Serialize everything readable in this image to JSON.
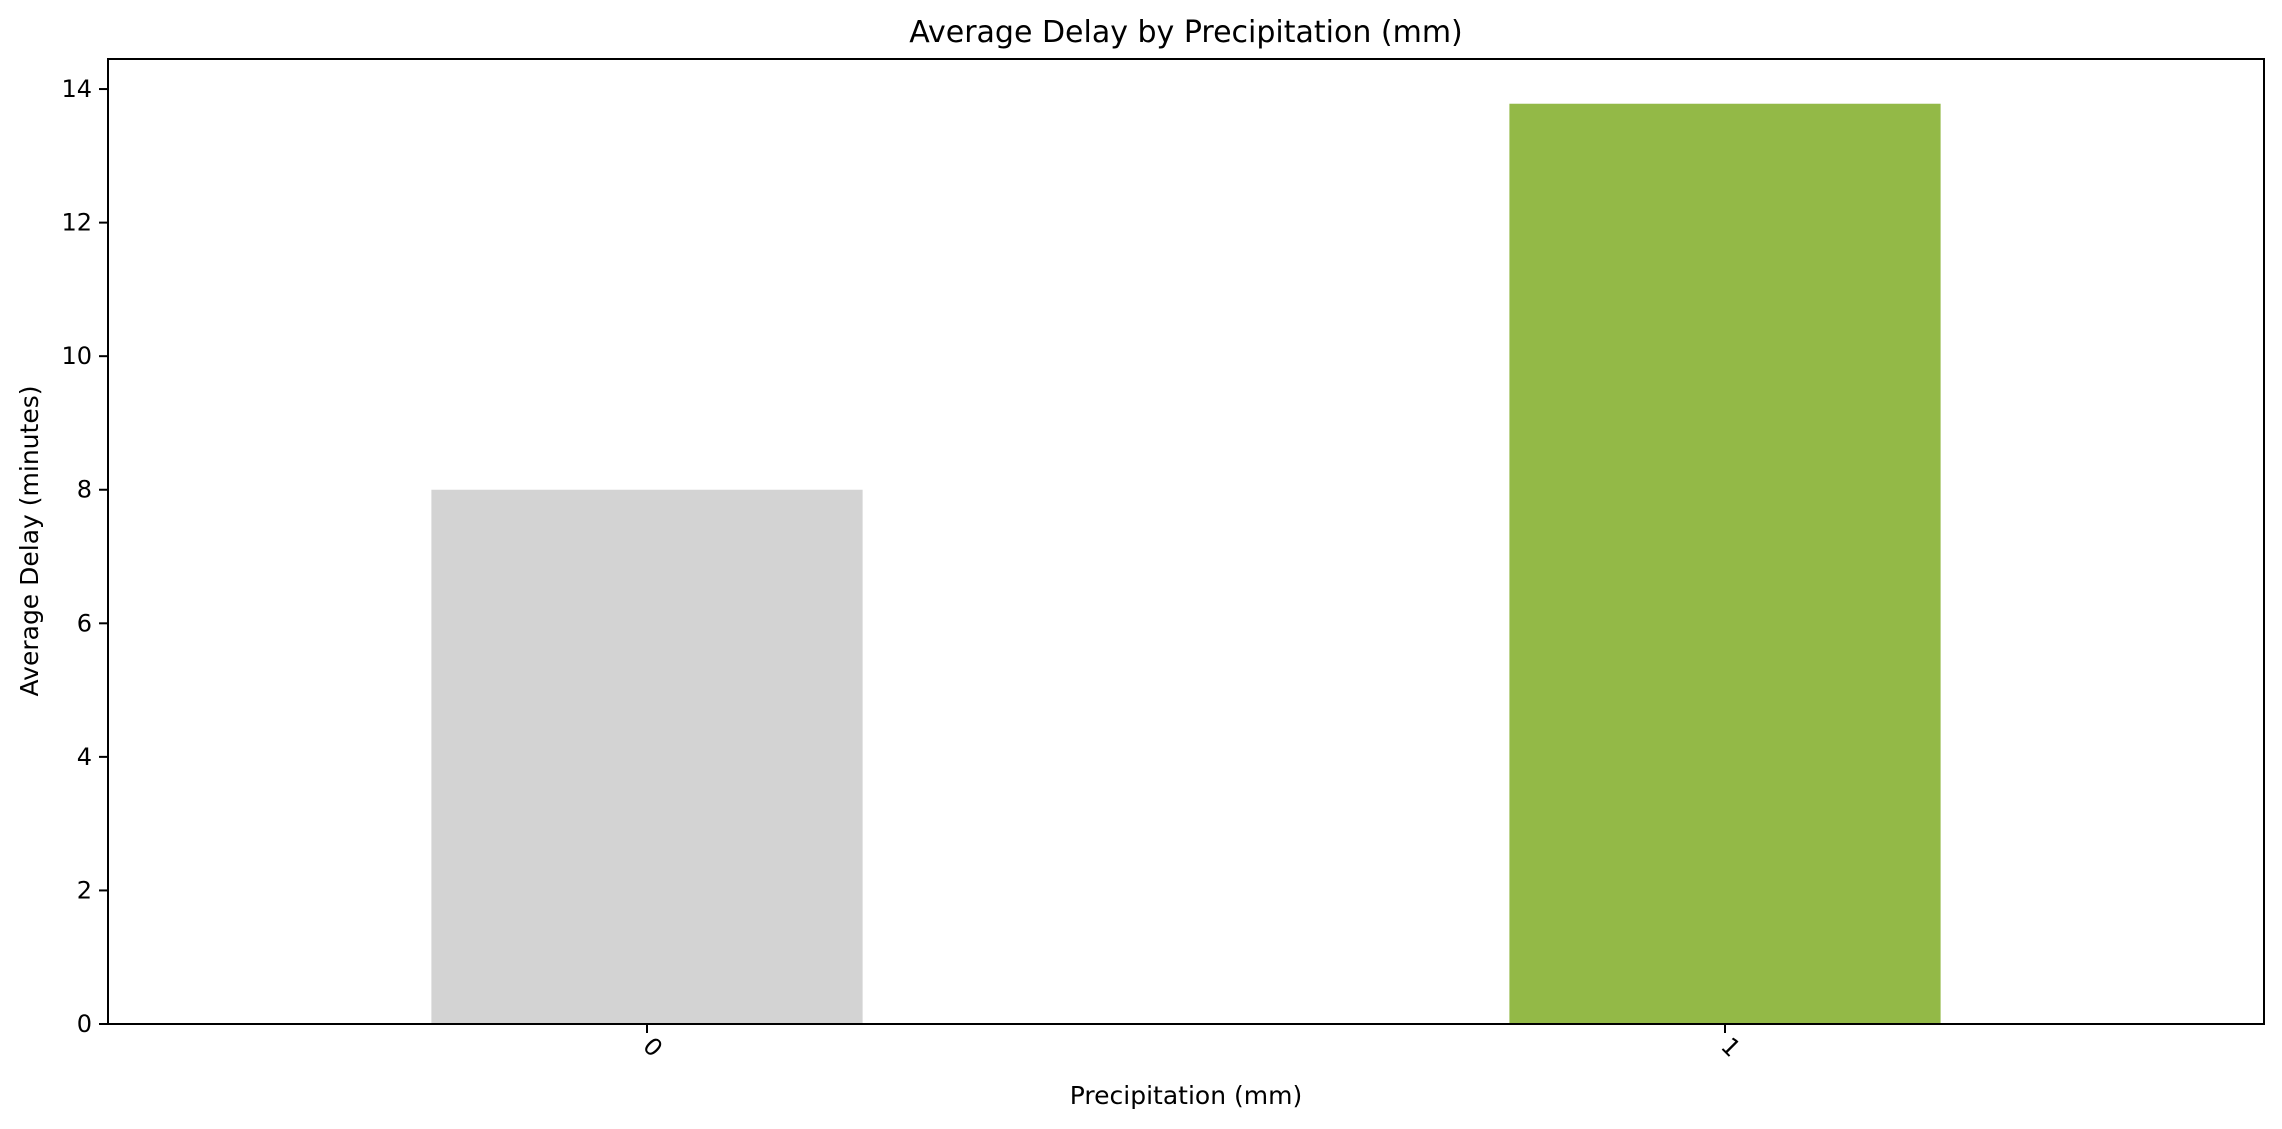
{
  "chart_data": {
    "type": "bar",
    "title": "Average Delay by Precipitation (mm)",
    "xlabel": "Precipitation (mm)",
    "ylabel": "Average Delay (minutes)",
    "categories": [
      "0",
      "1"
    ],
    "values": [
      8.0,
      13.78
    ],
    "colors": [
      "#d3d3d3",
      "#93b947"
    ],
    "ylim": [
      0,
      14.45
    ],
    "yticks": [
      0,
      2,
      4,
      6,
      8,
      10,
      12,
      14
    ],
    "ytick_labels": [
      "0",
      "2",
      "4",
      "6",
      "8",
      "10",
      "12",
      "14"
    ],
    "xtick_rotation_deg": 45,
    "grid": false,
    "legend": "none"
  }
}
